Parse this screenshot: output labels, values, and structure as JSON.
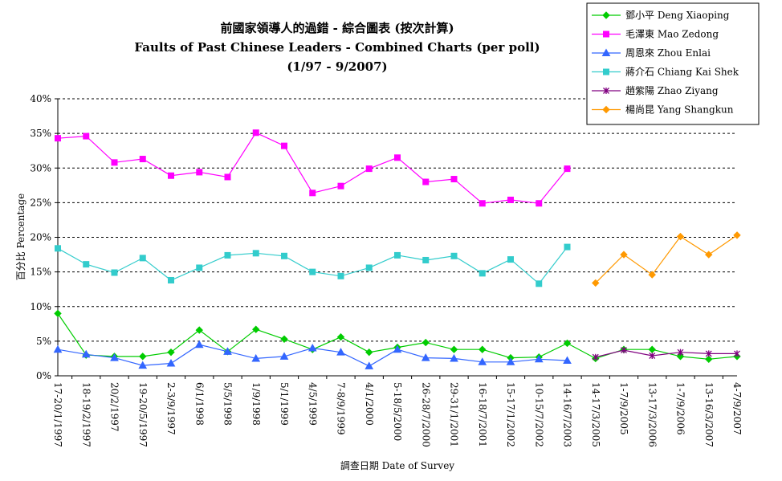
{
  "chart_data": {
    "type": "line",
    "title_lines": [
      "前國家領導人的過錯 - 綜合圖表 (按次計算)",
      "Faults of Past Chinese Leaders - Combined Charts (per poll)",
      "(1/97 - 9/2007)"
    ],
    "xlabel": "調查日期 Date of Survey",
    "ylabel": "百分比 Percentage",
    "ylim": [
      0,
      40
    ],
    "yticks": [
      0,
      5,
      10,
      15,
      20,
      25,
      30,
      35,
      40
    ],
    "ytick_labels": [
      "0%",
      "5%",
      "10%",
      "15%",
      "20%",
      "25%",
      "30%",
      "35%",
      "40%"
    ],
    "grid": true,
    "legend_position": "top-right",
    "categories": [
      "17-20/1/1997",
      "18-19/2/1997",
      "20/2/1997",
      "19-20/5/1997",
      "2-3/9/1997",
      "6/1/1998",
      "5/5/1998",
      "1/9/1998",
      "5/1/1999",
      "4/5/1999",
      "7-8/9/1999",
      "4/1/2000",
      "5-18/5/2000",
      "26-28/7/2000",
      "29-31/1/2001",
      "16-18/7/2001",
      "15-17/1/2002",
      "10-15/7/2002",
      "14-16/7/2003",
      "14-17/3/2005",
      "1-7/9/2005",
      "13-17/3/2006",
      "1-7/9/2006",
      "13-16/3/2007",
      "4-7/9/2007"
    ],
    "series": [
      {
        "name": "鄧小平 Deng Xiaoping",
        "color": "#00cc00",
        "marker": "diamond",
        "values": [
          9.0,
          3.0,
          2.8,
          2.8,
          3.4,
          6.6,
          3.5,
          6.7,
          5.3,
          3.8,
          5.6,
          3.4,
          4.1,
          4.8,
          3.8,
          3.8,
          2.6,
          2.7,
          4.7,
          2.5,
          3.8,
          3.8,
          2.8,
          2.4,
          2.8
        ]
      },
      {
        "name": "毛澤東 Mao Zedong",
        "color": "#ff00ff",
        "marker": "square",
        "values": [
          34.3,
          34.6,
          30.8,
          31.3,
          28.9,
          29.4,
          28.7,
          35.1,
          33.2,
          26.4,
          27.4,
          29.9,
          31.5,
          28.0,
          28.4,
          24.9,
          25.4,
          24.9,
          29.9,
          null,
          null,
          null,
          null,
          null,
          null
        ]
      },
      {
        "name": "周恩來 Zhou Enlai",
        "color": "#3366ff",
        "marker": "triangle",
        "values": [
          3.8,
          3.1,
          2.6,
          1.5,
          1.8,
          4.5,
          3.5,
          2.5,
          2.8,
          4.0,
          3.4,
          1.4,
          3.8,
          2.6,
          2.5,
          2.0,
          2.0,
          2.4,
          2.2,
          null,
          null,
          null,
          null,
          null,
          null
        ]
      },
      {
        "name": "蔣介石 Chiang Kai Shek",
        "color": "#33cccc",
        "marker": "square",
        "values": [
          18.4,
          16.1,
          14.9,
          17.0,
          13.8,
          15.6,
          17.4,
          17.7,
          17.3,
          15.0,
          14.4,
          15.6,
          17.4,
          16.7,
          17.3,
          14.8,
          16.8,
          13.3,
          18.6,
          null,
          null,
          null,
          null,
          null,
          null
        ]
      },
      {
        "name": "趙紫陽 Zhao Ziyang",
        "color": "#800080",
        "marker": "star",
        "values": [
          null,
          null,
          null,
          null,
          null,
          null,
          null,
          null,
          null,
          null,
          null,
          null,
          null,
          null,
          null,
          null,
          null,
          null,
          null,
          2.7,
          3.7,
          2.9,
          3.4,
          3.2,
          3.2
        ]
      },
      {
        "name": "楊尚昆 Yang Shangkun",
        "color": "#ff9900",
        "marker": "diamond",
        "values": [
          null,
          null,
          null,
          null,
          null,
          null,
          null,
          null,
          null,
          null,
          null,
          null,
          null,
          null,
          null,
          null,
          null,
          null,
          null,
          13.4,
          17.5,
          14.6,
          20.1,
          17.5,
          20.3
        ]
      }
    ]
  }
}
